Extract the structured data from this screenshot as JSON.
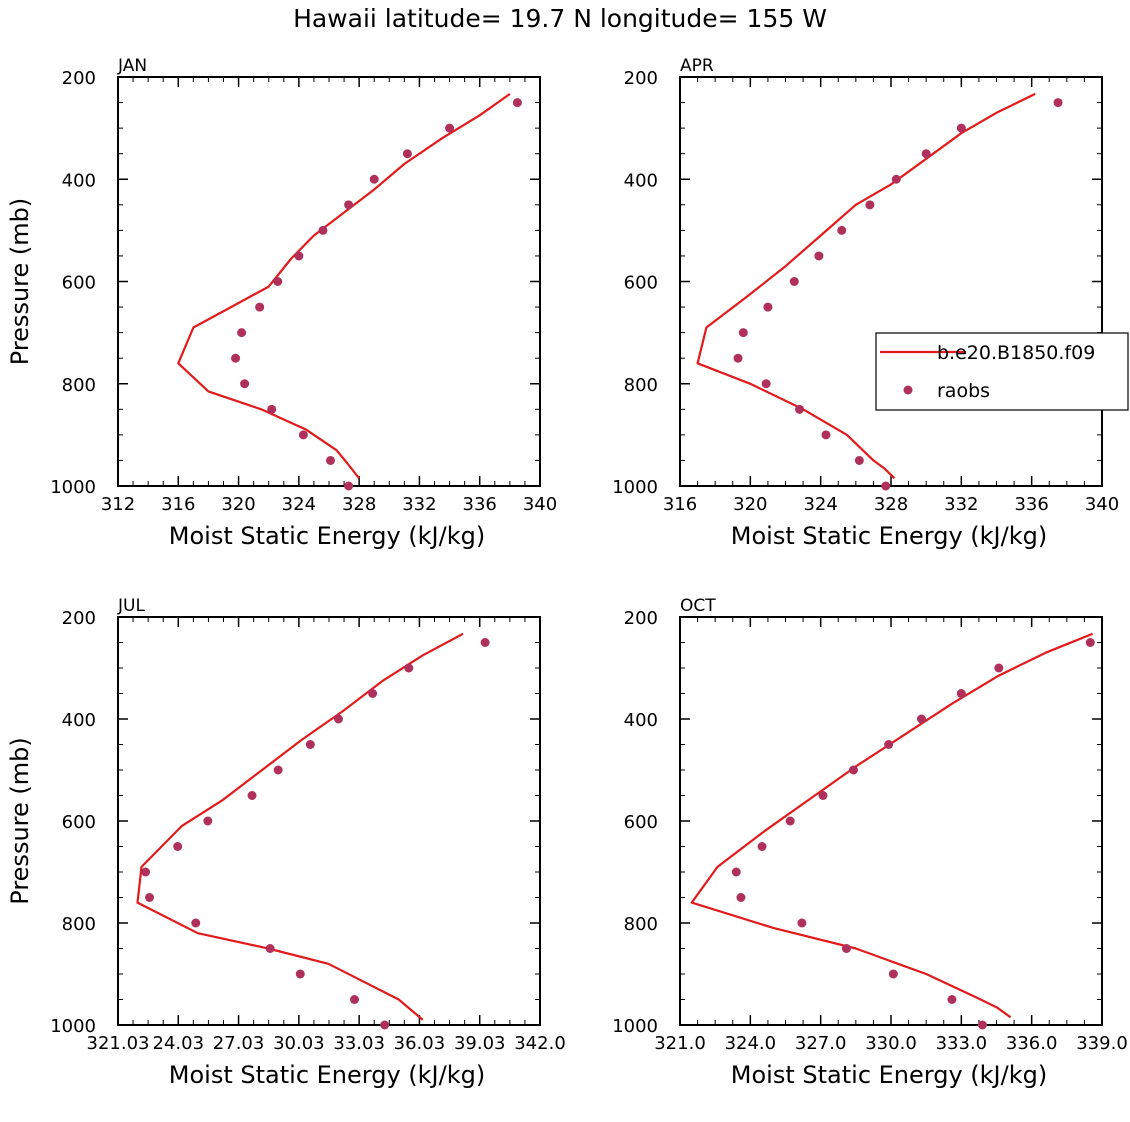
{
  "figure": {
    "title": "Hawaii  latitude= 19.7 N longitude= 155 W"
  },
  "legend": {
    "model_label": "b.e20.B1850.f09",
    "obs_label": "raobs",
    "model_color": "#e31a1c",
    "obs_color": "#b0305c"
  },
  "chart_data": [
    {
      "type": "line",
      "panel": "JAN",
      "xlabel": "Moist Static Energy (kJ/kg)",
      "ylabel": "Pressure (mb)",
      "xlim": [
        312,
        340
      ],
      "ylim": [
        1000,
        200
      ],
      "y_reversed": true,
      "xticks": [
        "312",
        "316",
        "320",
        "324",
        "328",
        "332",
        "336",
        "340"
      ],
      "xtick_values": [
        312,
        316,
        320,
        324,
        328,
        332,
        336,
        340
      ],
      "yticks": [
        200,
        400,
        600,
        800,
        1000
      ],
      "series": [
        {
          "name": "b.e20.B1850.f09",
          "style": "line",
          "points": [
            [
              338.0,
              233
            ],
            [
              336.0,
              275
            ],
            [
              333.5,
              320
            ],
            [
              331.0,
              370
            ],
            [
              329.0,
              420
            ],
            [
              327.0,
              465
            ],
            [
              325.0,
              510
            ],
            [
              323.5,
              555
            ],
            [
              322.0,
              610
            ],
            [
              319.5,
              650
            ],
            [
              317.0,
              690
            ],
            [
              316.0,
              760
            ],
            [
              318.0,
              815
            ],
            [
              321.5,
              850
            ],
            [
              324.5,
              890
            ],
            [
              326.5,
              930
            ],
            [
              327.2,
              955
            ],
            [
              328.0,
              985
            ]
          ]
        },
        {
          "name": "raobs",
          "style": "points",
          "points": [
            [
              338.5,
              250
            ],
            [
              334.0,
              300
            ],
            [
              331.2,
              350
            ],
            [
              329.0,
              400
            ],
            [
              327.3,
              450
            ],
            [
              325.6,
              500
            ],
            [
              324.0,
              550
            ],
            [
              322.6,
              600
            ],
            [
              321.4,
              650
            ],
            [
              320.2,
              700
            ],
            [
              319.8,
              750
            ],
            [
              320.4,
              800
            ],
            [
              322.2,
              850
            ],
            [
              324.3,
              900
            ],
            [
              326.1,
              950
            ],
            [
              327.3,
              1000
            ]
          ]
        }
      ]
    },
    {
      "type": "line",
      "panel": "APR",
      "xlabel": "Moist Static Energy (kJ/kg)",
      "ylabel": "",
      "xlim": [
        316,
        340
      ],
      "ylim": [
        1000,
        200
      ],
      "y_reversed": true,
      "xticks": [
        "316",
        "320",
        "324",
        "328",
        "332",
        "336",
        "340"
      ],
      "xtick_values": [
        316,
        320,
        324,
        328,
        332,
        336,
        340
      ],
      "yticks": [
        200,
        400,
        600,
        800,
        1000
      ],
      "series": [
        {
          "name": "b.e20.B1850.f09",
          "style": "line",
          "points": [
            [
              336.2,
              233
            ],
            [
              334.0,
              270
            ],
            [
              332.0,
              310
            ],
            [
              330.0,
              360
            ],
            [
              328.0,
              410
            ],
            [
              326.0,
              450
            ],
            [
              324.0,
              510
            ],
            [
              322.0,
              570
            ],
            [
              319.8,
              630
            ],
            [
              317.5,
              690
            ],
            [
              317.0,
              760
            ],
            [
              320.0,
              800
            ],
            [
              323.0,
              850
            ],
            [
              325.5,
              900
            ],
            [
              327.0,
              950
            ],
            [
              327.6,
              965
            ],
            [
              328.2,
              985
            ]
          ]
        },
        {
          "name": "raobs",
          "style": "points",
          "points": [
            [
              337.5,
              250
            ],
            [
              332.0,
              300
            ],
            [
              330.0,
              350
            ],
            [
              328.3,
              400
            ],
            [
              326.8,
              450
            ],
            [
              325.2,
              500
            ],
            [
              323.9,
              550
            ],
            [
              322.5,
              600
            ],
            [
              321.0,
              650
            ],
            [
              319.6,
              700
            ],
            [
              319.3,
              750
            ],
            [
              320.9,
              800
            ],
            [
              322.8,
              850
            ],
            [
              324.3,
              900
            ],
            [
              326.2,
              950
            ],
            [
              327.7,
              1000
            ]
          ]
        }
      ]
    },
    {
      "type": "line",
      "panel": "JUL",
      "xlabel": "Moist Static Energy (kJ/kg)",
      "ylabel": "Pressure (mb)",
      "xlim": [
        321.03,
        342.03
      ],
      "ylim": [
        1000,
        200
      ],
      "y_reversed": true,
      "xticks": [
        "321.03",
        "24.03",
        "27.03",
        "30.03",
        "33.03",
        "36.03",
        "39.03",
        "342.0"
      ],
      "xtick_values": [
        321.03,
        324.03,
        327.03,
        330.03,
        333.03,
        336.03,
        339.03,
        342.03
      ],
      "yticks": [
        200,
        400,
        600,
        800,
        1000
      ],
      "series": [
        {
          "name": "b.e20.B1850.f09",
          "style": "line",
          "points": [
            [
              338.2,
              233
            ],
            [
              336.2,
              275
            ],
            [
              334.2,
              325
            ],
            [
              332.2,
              385
            ],
            [
              330.2,
              440
            ],
            [
              328.2,
              500
            ],
            [
              326.2,
              560
            ],
            [
              324.2,
              610
            ],
            [
              323.2,
              650
            ],
            [
              322.2,
              690
            ],
            [
              322.0,
              760
            ],
            [
              325.0,
              820
            ],
            [
              328.5,
              850
            ],
            [
              331.5,
              880
            ],
            [
              333.5,
              920
            ],
            [
              335.0,
              950
            ],
            [
              336.2,
              990
            ]
          ]
        },
        {
          "name": "raobs",
          "style": "points",
          "points": [
            [
              339.3,
              250
            ],
            [
              335.5,
              300
            ],
            [
              333.7,
              350
            ],
            [
              332.0,
              400
            ],
            [
              330.6,
              450
            ],
            [
              329.0,
              500
            ],
            [
              327.7,
              550
            ],
            [
              325.5,
              600
            ],
            [
              324.0,
              650
            ],
            [
              322.4,
              700
            ],
            [
              322.6,
              750
            ],
            [
              324.9,
              800
            ],
            [
              328.6,
              850
            ],
            [
              330.1,
              900
            ],
            [
              332.8,
              950
            ],
            [
              334.3,
              1000
            ]
          ]
        }
      ]
    },
    {
      "type": "line",
      "panel": "OCT",
      "xlabel": "Moist Static Energy (kJ/kg)",
      "ylabel": "",
      "xlim": [
        321.0,
        339.0
      ],
      "ylim": [
        1000,
        200
      ],
      "y_reversed": true,
      "xticks": [
        "321.0",
        "324.0",
        "327.0",
        "330.0",
        "333.0",
        "336.0",
        "339.0"
      ],
      "xtick_values": [
        321.0,
        324.0,
        327.0,
        330.0,
        333.0,
        336.0,
        339.0
      ],
      "yticks": [
        200,
        400,
        600,
        800,
        1000
      ],
      "series": [
        {
          "name": "b.e20.B1850.f09",
          "style": "line",
          "points": [
            [
              338.6,
              233
            ],
            [
              336.6,
              270
            ],
            [
              334.6,
              315
            ],
            [
              332.6,
              370
            ],
            [
              330.6,
              430
            ],
            [
              328.6,
              490
            ],
            [
              326.6,
              555
            ],
            [
              324.6,
              620
            ],
            [
              322.6,
              690
            ],
            [
              321.5,
              760
            ],
            [
              325.0,
              810
            ],
            [
              328.5,
              850
            ],
            [
              331.5,
              900
            ],
            [
              333.6,
              945
            ],
            [
              334.5,
              965
            ],
            [
              335.1,
              985
            ]
          ]
        },
        {
          "name": "raobs",
          "style": "points",
          "points": [
            [
              338.5,
              250
            ],
            [
              334.6,
              300
            ],
            [
              333.0,
              350
            ],
            [
              331.3,
              400
            ],
            [
              329.9,
              450
            ],
            [
              328.4,
              500
            ],
            [
              327.1,
              550
            ],
            [
              325.7,
              600
            ],
            [
              324.5,
              650
            ],
            [
              323.4,
              700
            ],
            [
              323.6,
              750
            ],
            [
              326.2,
              800
            ],
            [
              328.1,
              850
            ],
            [
              330.1,
              900
            ],
            [
              332.6,
              950
            ],
            [
              333.9,
              1000
            ]
          ]
        }
      ]
    }
  ]
}
